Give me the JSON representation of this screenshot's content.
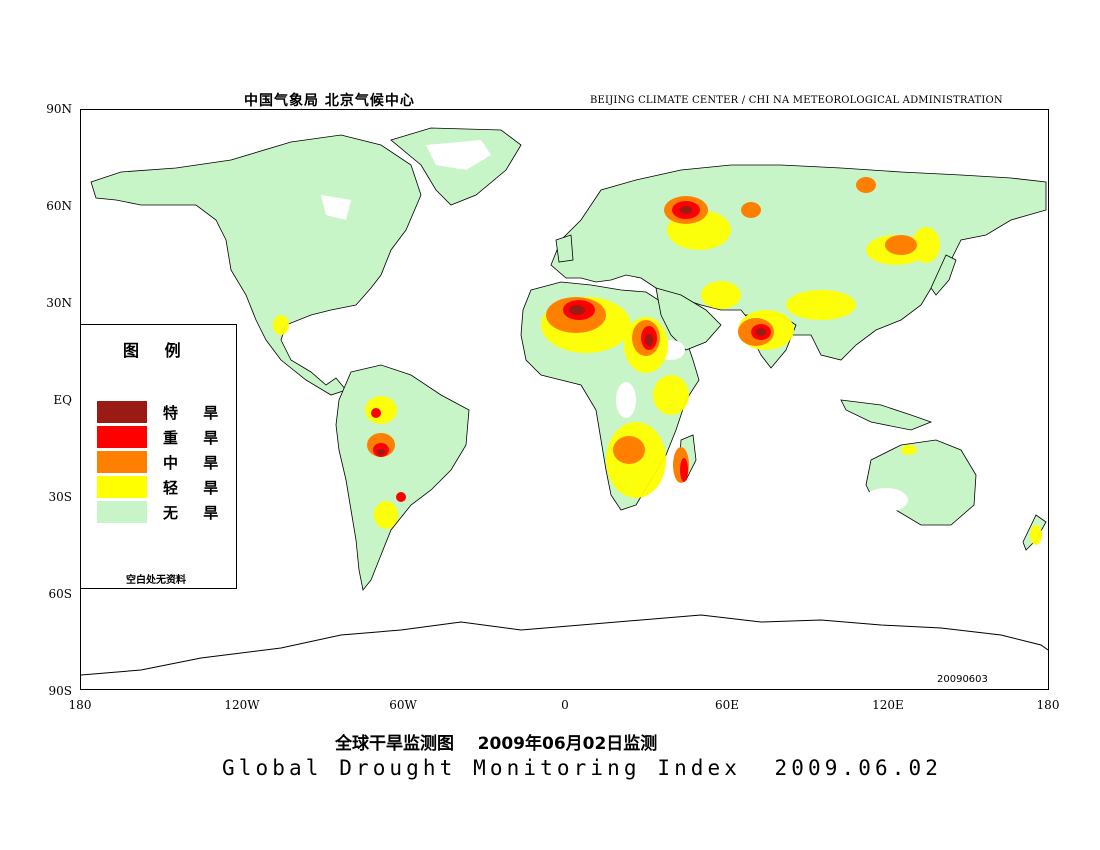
{
  "header": {
    "left_cn": "中国气象局  北京气候中心",
    "right_en": "BEIJING CLIMATE CENTER / CHI NA METEOROLOGICAL ADMINISTRATION"
  },
  "axes": {
    "lat_labels": [
      "90N",
      "60N",
      "30N",
      "EQ",
      "30S",
      "60S",
      "90S"
    ],
    "lon_labels": [
      "180",
      "120W",
      "60W",
      "0",
      "60E",
      "120E",
      "180"
    ]
  },
  "stamp": "20090603",
  "legend": {
    "title": "图 例",
    "items": [
      {
        "label": "特 旱",
        "color": "#9a1b14"
      },
      {
        "label": "重 旱",
        "color": "#ff0000"
      },
      {
        "label": "中 旱",
        "color": "#ff8000"
      },
      {
        "label": "轻 旱",
        "color": "#ffff00"
      },
      {
        "label": "无 旱",
        "color": "#c8f5c8"
      }
    ],
    "note": "空白处无资料"
  },
  "titles": {
    "cn": "全球干旱监测图    2009年06月02日监测",
    "en": "Global Drought Monitoring Index  2009.06.02"
  },
  "colors": {
    "no_drought": "#c8f5c8",
    "light": "#ffff00",
    "moderate": "#ff8000",
    "severe": "#ff0000",
    "extreme": "#9a1b14"
  }
}
